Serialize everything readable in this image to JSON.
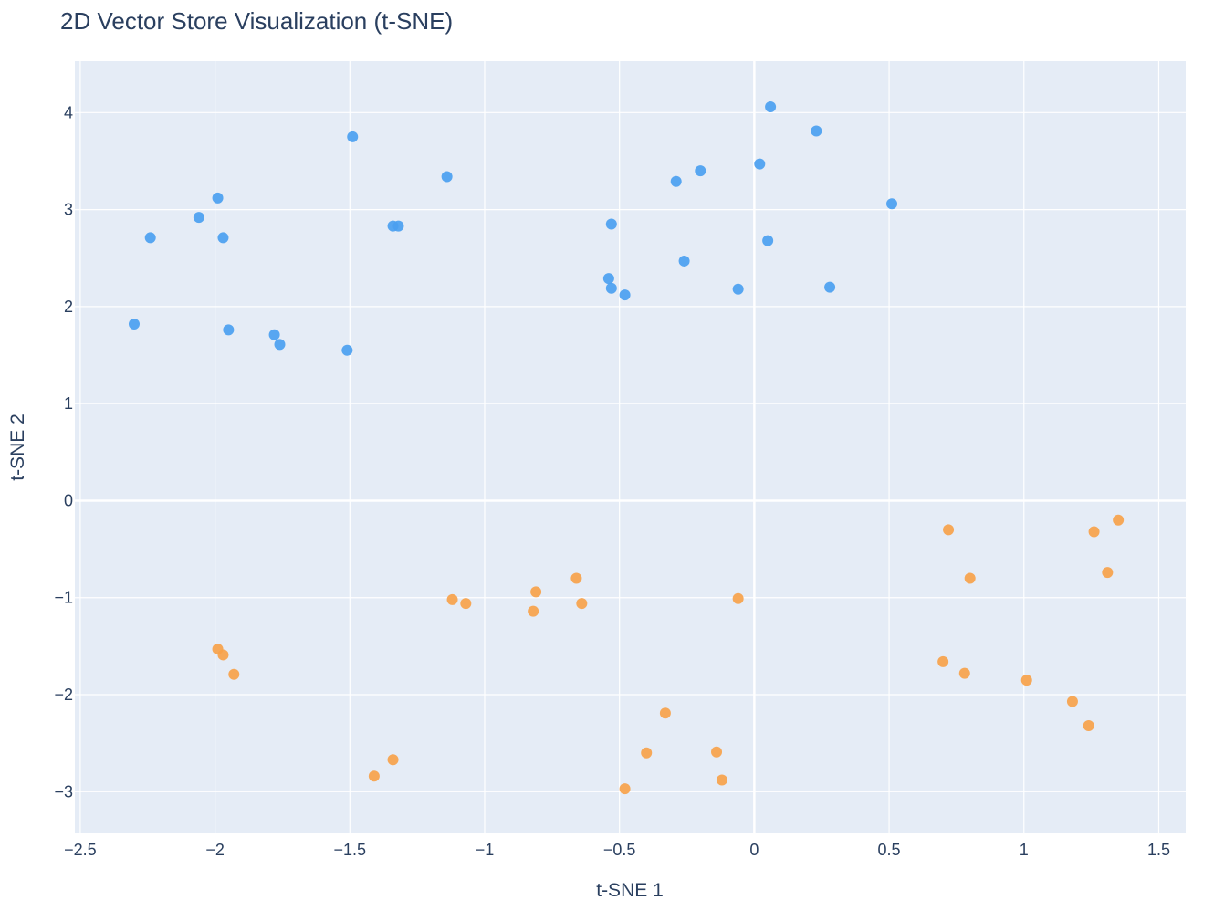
{
  "chart_data": {
    "type": "scatter",
    "title": "2D Vector Store Visualization (t-SNE)",
    "xlabel": "t-SNE 1",
    "ylabel": "t-SNE 2",
    "xlim": [
      -2.52,
      1.6
    ],
    "ylim": [
      -3.43,
      4.53
    ],
    "xticks": [
      -2.5,
      -2,
      -1.5,
      -1,
      -0.5,
      0,
      0.5,
      1,
      1.5
    ],
    "xtick_labels": [
      "−2.5",
      "−2",
      "−1.5",
      "−1",
      "−0.5",
      "0",
      "0.5",
      "1",
      "1.5"
    ],
    "yticks": [
      -3,
      -2,
      -1,
      0,
      1,
      2,
      3,
      4
    ],
    "ytick_labels": [
      "−3",
      "−2",
      "−1",
      "0",
      "1",
      "2",
      "3",
      "4"
    ],
    "grid": true,
    "legend": "none",
    "background": "#e5ecf6",
    "series": [
      {
        "color": "#4b9ff0",
        "points": [
          [
            -2.3,
            1.82
          ],
          [
            -2.24,
            2.71
          ],
          [
            -2.06,
            2.92
          ],
          [
            -1.99,
            3.12
          ],
          [
            -1.97,
            2.71
          ],
          [
            -1.95,
            1.76
          ],
          [
            -1.78,
            1.71
          ],
          [
            -1.76,
            1.61
          ],
          [
            -1.49,
            3.75
          ],
          [
            -1.51,
            1.55
          ],
          [
            -1.34,
            2.83
          ],
          [
            -1.32,
            2.83
          ],
          [
            -1.14,
            3.34
          ],
          [
            -0.54,
            2.29
          ],
          [
            -0.53,
            2.85
          ],
          [
            -0.53,
            2.19
          ],
          [
            -0.48,
            2.12
          ],
          [
            -0.29,
            3.29
          ],
          [
            -0.26,
            2.47
          ],
          [
            -0.2,
            3.4
          ],
          [
            -0.06,
            2.18
          ],
          [
            0.02,
            3.47
          ],
          [
            0.05,
            2.68
          ],
          [
            0.06,
            4.06
          ],
          [
            0.23,
            3.81
          ],
          [
            0.28,
            2.2
          ],
          [
            0.51,
            3.06
          ]
        ]
      },
      {
        "color": "#f7a24a",
        "points": [
          [
            -1.99,
            -1.53
          ],
          [
            -1.97,
            -1.59
          ],
          [
            -1.93,
            -1.79
          ],
          [
            -1.41,
            -2.84
          ],
          [
            -1.34,
            -2.67
          ],
          [
            -1.12,
            -1.02
          ],
          [
            -1.07,
            -1.06
          ],
          [
            -0.82,
            -1.14
          ],
          [
            -0.81,
            -0.94
          ],
          [
            -0.66,
            -0.8
          ],
          [
            -0.64,
            -1.06
          ],
          [
            -0.48,
            -2.97
          ],
          [
            -0.4,
            -2.6
          ],
          [
            -0.33,
            -2.19
          ],
          [
            -0.14,
            -2.59
          ],
          [
            -0.12,
            -2.88
          ],
          [
            -0.06,
            -1.01
          ],
          [
            0.7,
            -1.66
          ],
          [
            0.72,
            -0.3
          ],
          [
            0.78,
            -1.78
          ],
          [
            0.8,
            -0.8
          ],
          [
            1.01,
            -1.85
          ],
          [
            1.18,
            -2.07
          ],
          [
            1.24,
            -2.32
          ],
          [
            1.26,
            -0.32
          ],
          [
            1.31,
            -0.74
          ],
          [
            1.35,
            -0.2
          ]
        ]
      }
    ]
  }
}
